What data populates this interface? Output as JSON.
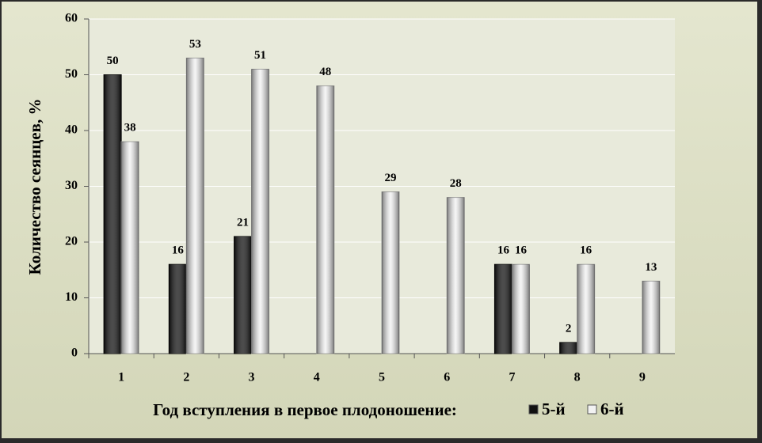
{
  "chart_data": {
    "type": "bar",
    "y_axis_title": "Количество сеянцев, %",
    "x_axis_title": "Год вступления в первое плодоношение:",
    "categories": [
      "1",
      "2",
      "3",
      "4",
      "5",
      "6",
      "7",
      "8",
      "9"
    ],
    "series": [
      {
        "name": "5-й",
        "color": "#111111",
        "values": [
          50,
          16,
          21,
          null,
          null,
          null,
          16,
          2,
          null
        ]
      },
      {
        "name": "6-й",
        "color": "#f2f2f2",
        "values": [
          38,
          53,
          51,
          48,
          29,
          28,
          16,
          16,
          13
        ]
      }
    ],
    "ylim": [
      0,
      60
    ],
    "yticks": [
      0,
      10,
      20,
      30,
      40,
      50,
      60
    ],
    "grid": true
  }
}
